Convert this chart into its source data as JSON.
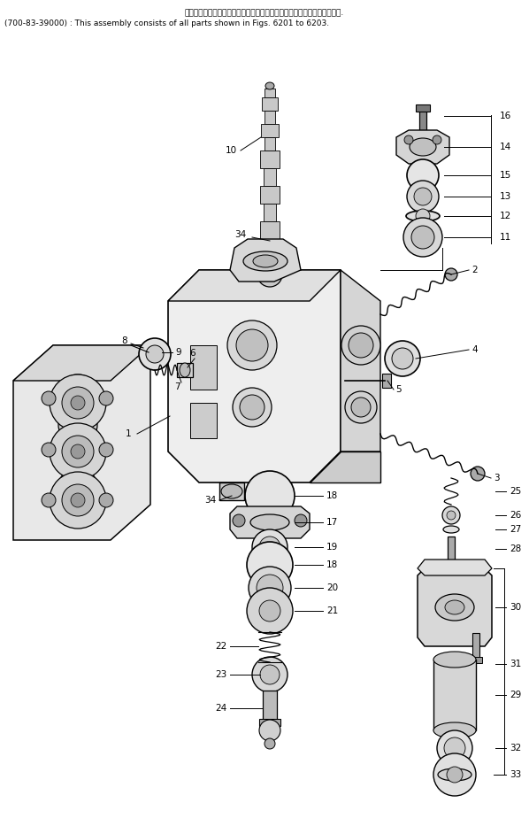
{
  "title_line1": "このアセンブリの構成部品は第６２０１図から第６２０３図まで含みます.",
  "title_line2": "(700-83-39000) : This assembly consists of all parts shown in Figs. 6201 to 6203.",
  "bg_color": "#ffffff",
  "line_color": "#000000",
  "fig_w": 5.98,
  "fig_h": 9.33,
  "dpi": 100
}
